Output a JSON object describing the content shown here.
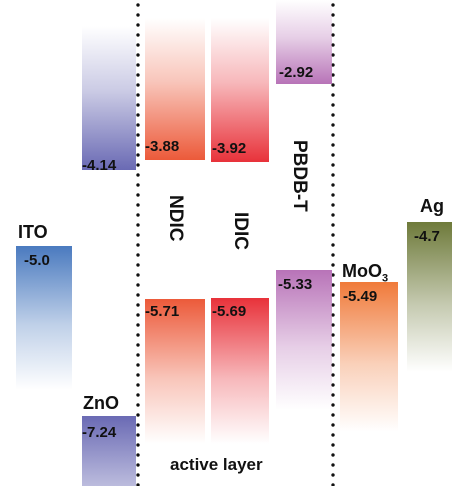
{
  "materials": [
    {
      "id": "ito",
      "name": "ITO",
      "levels": [
        "-5.0"
      ],
      "color": "#4a7abf"
    },
    {
      "id": "zno",
      "name": "ZnO",
      "levels": [
        "-4.14",
        "-7.24"
      ],
      "color": "#6a6ab4"
    },
    {
      "id": "ndic",
      "name": "NDIC",
      "levels": [
        "-3.88",
        "-5.71"
      ],
      "color": "#ec5a3a"
    },
    {
      "id": "idic",
      "name": "IDIC",
      "levels": [
        "-3.92",
        "-5.69"
      ],
      "color": "#e8323a"
    },
    {
      "id": "pbdbt",
      "name": "PBDB-T",
      "levels": [
        "-2.92",
        "-5.33"
      ],
      "color": "#b873b8"
    },
    {
      "id": "moo3",
      "name": "MoO",
      "name_sub": "3",
      "levels": [
        "-5.49"
      ],
      "color": "#f07a3a"
    },
    {
      "id": "ag",
      "name": "Ag",
      "levels": [
        "-4.7"
      ],
      "color": "#6e7a3a"
    }
  ],
  "region_label": "active layer"
}
